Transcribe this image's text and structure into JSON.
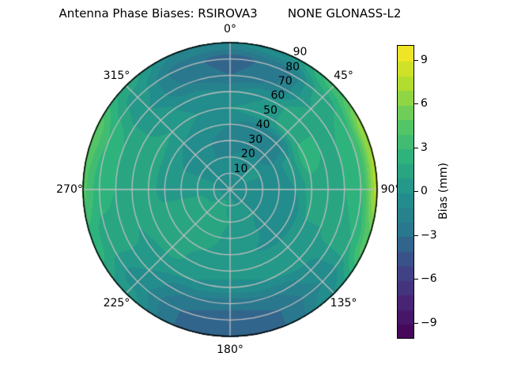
{
  "title": "Antenna Phase Biases: RSIROVA3        NONE GLONASS-L2",
  "chart_data": {
    "type": "heatmap",
    "projection": "polar",
    "title": "Antenna Phase Biases: RSIROVA3        NONE GLONASS-L2",
    "angular_tick_labels": [
      "0°",
      "45°",
      "90°",
      "135°",
      "180°",
      "225°",
      "270°",
      "315°"
    ],
    "angular_tick_degrees": [
      0,
      45,
      90,
      135,
      180,
      225,
      270,
      315
    ],
    "radial_tick_labels": [
      "10",
      "20",
      "30",
      "40",
      "50",
      "60",
      "70",
      "80",
      "90"
    ],
    "radial_tick_values": [
      10,
      20,
      30,
      40,
      50,
      60,
      70,
      80,
      90
    ],
    "radial_label_azimuth_deg": 27,
    "rmax": 90,
    "grid_on": true,
    "grid_color": "#bfbfbf",
    "colormap": {
      "name": "viridis",
      "stops": [
        "#440154",
        "#482475",
        "#3e4989",
        "#2a788e",
        "#21918c",
        "#2eb37c",
        "#5ec962",
        "#b2dd2e",
        "#fde725"
      ]
    },
    "colorbar": {
      "label": "Bias (mm)",
      "position": "right",
      "tick_labels": [
        "9",
        "6",
        "3",
        "0",
        "−3",
        "−6",
        "−9"
      ],
      "tick_values": [
        9,
        6,
        3,
        0,
        -3,
        -6,
        -9
      ],
      "vmin": -10,
      "vmax": 10,
      "level_step_mm": 1
    },
    "bias_grid_mm": {
      "comment_units": "rows = azimuth clockwise from North, cols = radial 0..90",
      "azimuth_deg": [
        0,
        22.5,
        45,
        67.5,
        90,
        112.5,
        135,
        157.5,
        180,
        202.5,
        225,
        247.5,
        270,
        292.5,
        315,
        337.5
      ],
      "radius": [
        0,
        10,
        20,
        30,
        40,
        50,
        60,
        70,
        80,
        90
      ],
      "values": [
        [
          -0.5,
          -0.5,
          -1.0,
          -1.5,
          -1.0,
          0.0,
          -1.0,
          -3.0,
          -3.5,
          -1.0
        ],
        [
          -0.5,
          -0.5,
          -0.5,
          -2.0,
          -1.5,
          0.5,
          0.0,
          -2.0,
          -2.5,
          0.0
        ],
        [
          -0.5,
          0.0,
          0.0,
          -2.0,
          -1.5,
          1.5,
          2.0,
          1.0,
          1.5,
          3.5
        ],
        [
          -0.5,
          0.0,
          0.0,
          -0.5,
          0.5,
          2.5,
          2.0,
          2.0,
          3.0,
          7.0
        ],
        [
          -0.5,
          -0.5,
          -0.5,
          -0.5,
          0.0,
          1.5,
          1.5,
          2.0,
          3.0,
          7.5
        ],
        [
          -0.5,
          -0.5,
          -0.5,
          -0.5,
          -0.5,
          1.0,
          1.0,
          1.5,
          2.0,
          4.5
        ],
        [
          -0.5,
          0.0,
          0.0,
          -0.5,
          -0.5,
          1.0,
          0.5,
          -0.5,
          -1.0,
          0.0
        ],
        [
          -0.5,
          0.0,
          0.5,
          0.5,
          0.0,
          0.5,
          0.0,
          -2.0,
          -3.0,
          -3.0
        ],
        [
          -0.5,
          0.5,
          1.0,
          0.5,
          0.0,
          0.5,
          -0.5,
          -2.5,
          -4.0,
          -4.0
        ],
        [
          -0.5,
          1.5,
          2.0,
          1.5,
          1.0,
          0.5,
          0.0,
          -2.0,
          -3.0,
          -3.0
        ],
        [
          -0.5,
          1.0,
          2.0,
          2.0,
          1.5,
          1.5,
          0.5,
          0.0,
          -0.5,
          0.5
        ],
        [
          -0.5,
          0.5,
          1.5,
          1.5,
          1.5,
          1.5,
          1.0,
          1.5,
          1.5,
          2.5
        ],
        [
          -0.5,
          0.0,
          0.5,
          0.5,
          0.5,
          1.5,
          1.5,
          2.0,
          2.5,
          4.2
        ],
        [
          -0.5,
          0.0,
          0.0,
          0.0,
          0.5,
          1.5,
          1.5,
          2.0,
          3.0,
          4.8
        ],
        [
          -0.5,
          -0.5,
          -0.5,
          -0.5,
          0.0,
          1.0,
          0.5,
          0.0,
          0.5,
          1.5
        ],
        [
          -0.5,
          -0.5,
          -1.0,
          -1.0,
          -0.5,
          0.0,
          -0.5,
          -2.0,
          -2.5,
          -1.0
        ]
      ]
    }
  }
}
